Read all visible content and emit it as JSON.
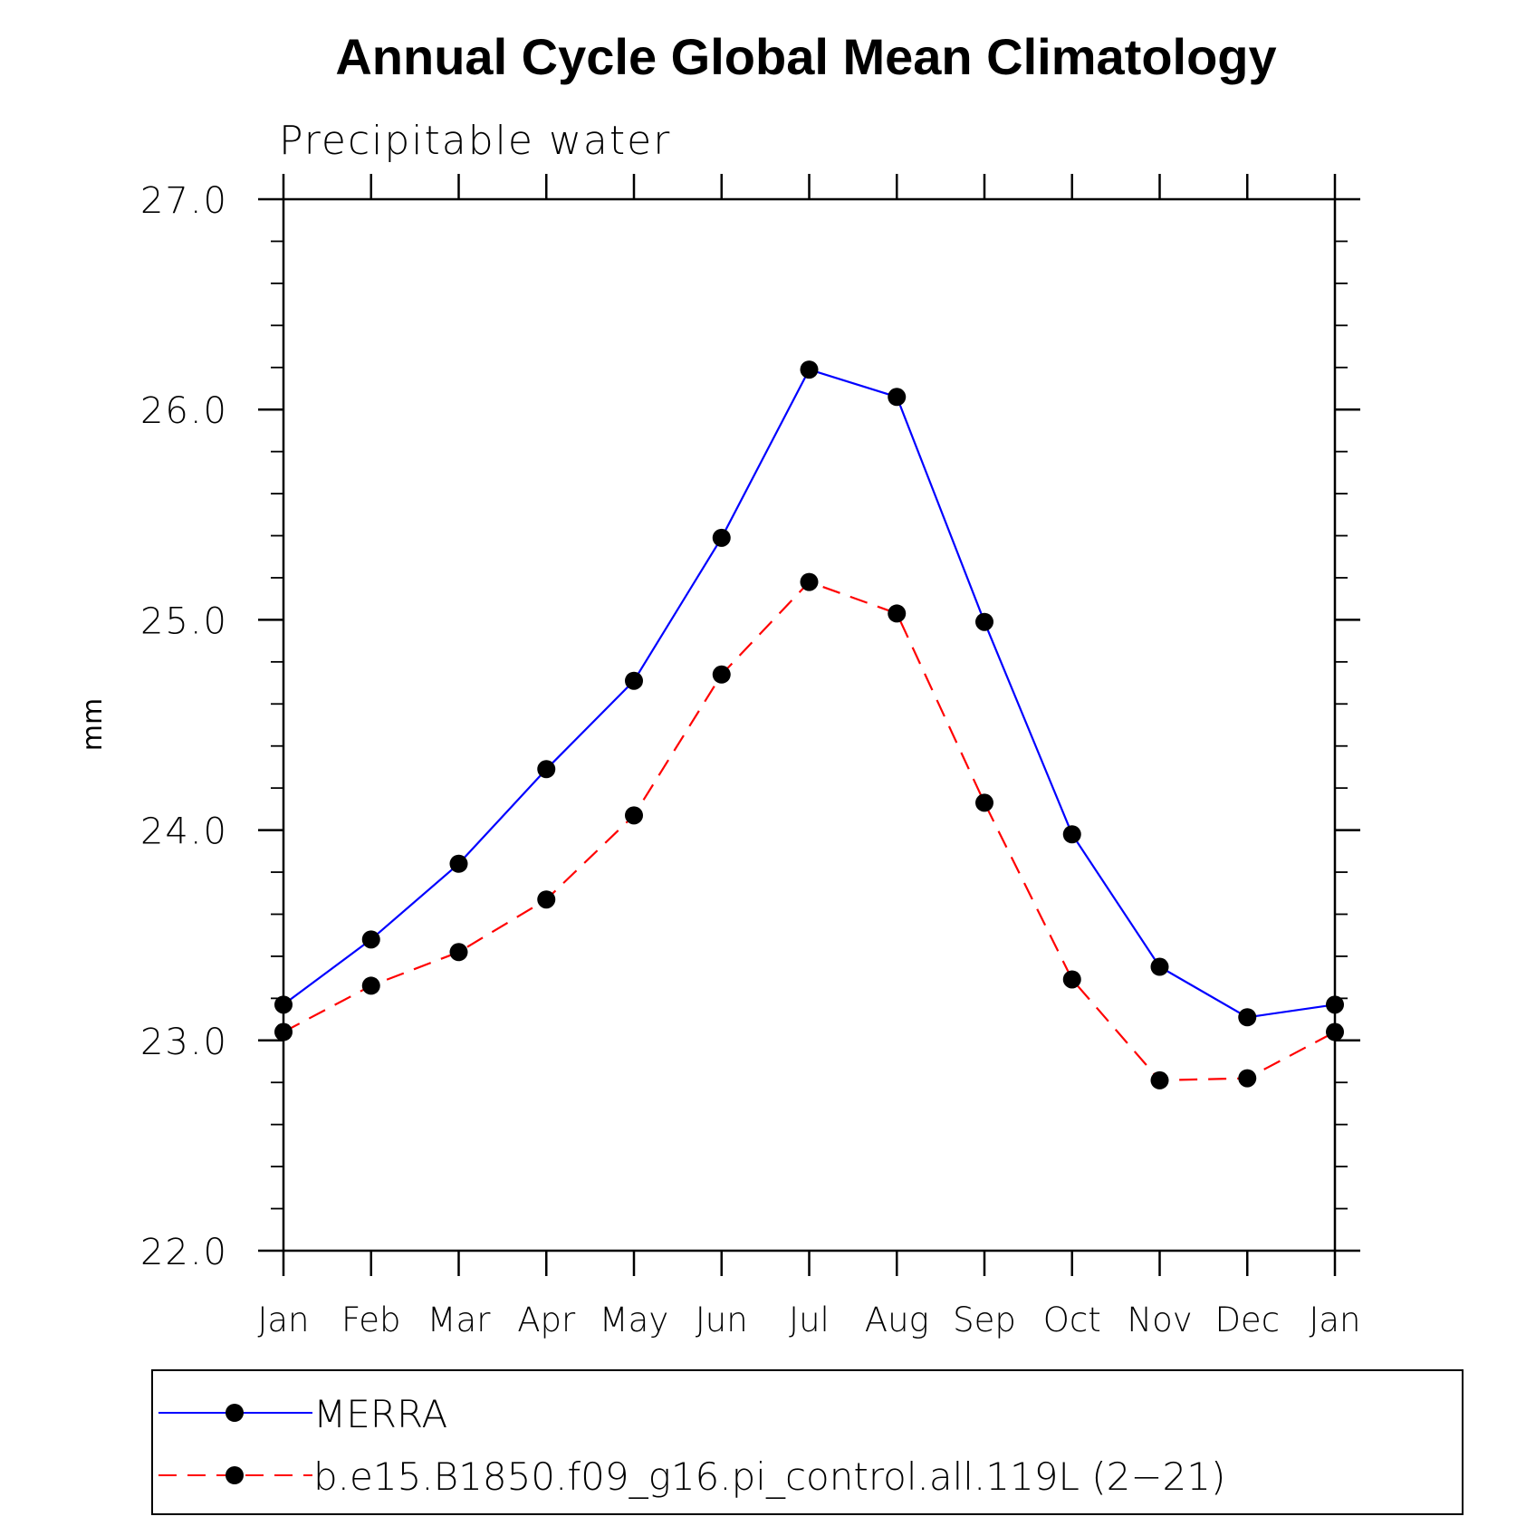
{
  "chart_data": {
    "type": "line",
    "title": "Annual Cycle Global Mean Climatology",
    "subtitle": "Precipitable water",
    "ylabel": "mm",
    "xlabel": "",
    "categories": [
      "Jan",
      "Feb",
      "Mar",
      "Apr",
      "May",
      "Jun",
      "Jul",
      "Aug",
      "Sep",
      "Oct",
      "Nov",
      "Dec",
      "Jan"
    ],
    "ylim": [
      22.0,
      27.0
    ],
    "yticks": [
      "22.0",
      "23.0",
      "24.0",
      "25.0",
      "26.0",
      "27.0"
    ],
    "series": [
      {
        "name": "MERRA",
        "color": "#0000ff",
        "dash": "solid",
        "marker": "filled-circle",
        "values": [
          23.17,
          23.48,
          23.84,
          24.29,
          24.71,
          25.39,
          26.19,
          26.06,
          24.99,
          23.98,
          23.35,
          23.11,
          23.17
        ]
      },
      {
        "name": "b.e15.B1850.f09_g16.pi_control.all.119L (2−21)",
        "color": "#ff0000",
        "dash": "dashed",
        "marker": "filled-circle",
        "values": [
          23.04,
          23.26,
          23.42,
          23.67,
          24.07,
          24.74,
          25.18,
          25.03,
          24.13,
          23.29,
          22.81,
          22.82,
          23.04
        ]
      }
    ],
    "legend_position": "bottom",
    "grid": false
  }
}
